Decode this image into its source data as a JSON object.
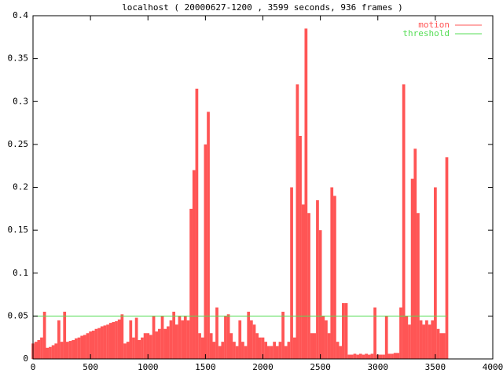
{
  "chart_data": {
    "type": "impulse",
    "title": "localhost ( 20000627-1200 , 3599 seconds, 936 frames )",
    "xlim": [
      0,
      4000
    ],
    "xticks": [
      0,
      500,
      1000,
      1500,
      2000,
      2500,
      3000,
      3500,
      4000
    ],
    "ylim": [
      0,
      0.4
    ],
    "yticks": [
      0,
      0.05,
      0.1,
      0.15,
      0.2,
      0.25,
      0.3,
      0.35,
      0.4
    ],
    "legend": "upper right",
    "series": [
      {
        "name": "motion",
        "color": "#ff5555",
        "style": "impulses",
        "x": [
          0,
          25,
          50,
          75,
          100,
          125,
          150,
          175,
          200,
          225,
          250,
          275,
          300,
          325,
          350,
          375,
          400,
          425,
          450,
          475,
          500,
          525,
          550,
          575,
          600,
          625,
          650,
          675,
          700,
          725,
          750,
          775,
          800,
          825,
          850,
          875,
          900,
          925,
          950,
          975,
          1000,
          1025,
          1050,
          1075,
          1100,
          1125,
          1150,
          1175,
          1200,
          1225,
          1250,
          1275,
          1300,
          1325,
          1350,
          1375,
          1400,
          1425,
          1450,
          1475,
          1500,
          1525,
          1550,
          1575,
          1600,
          1625,
          1650,
          1675,
          1700,
          1725,
          1750,
          1775,
          1800,
          1825,
          1850,
          1875,
          1900,
          1925,
          1950,
          1975,
          2000,
          2025,
          2050,
          2075,
          2100,
          2125,
          2150,
          2175,
          2200,
          2225,
          2250,
          2275,
          2300,
          2325,
          2350,
          2375,
          2400,
          2425,
          2450,
          2475,
          2500,
          2525,
          2550,
          2575,
          2600,
          2625,
          2650,
          2675,
          2700,
          2725,
          2750,
          2775,
          2800,
          2825,
          2850,
          2875,
          2900,
          2925,
          2950,
          2975,
          3000,
          3025,
          3050,
          3075,
          3100,
          3125,
          3150,
          3175,
          3200,
          3225,
          3250,
          3275,
          3300,
          3325,
          3350,
          3375,
          3400,
          3425,
          3450,
          3475,
          3500,
          3525,
          3550,
          3575,
          3600
        ],
        "values": [
          0.018,
          0.02,
          0.022,
          0.025,
          0.055,
          0.013,
          0.014,
          0.016,
          0.018,
          0.045,
          0.02,
          0.055,
          0.02,
          0.021,
          0.022,
          0.024,
          0.025,
          0.027,
          0.028,
          0.03,
          0.032,
          0.033,
          0.035,
          0.036,
          0.038,
          0.039,
          0.04,
          0.042,
          0.043,
          0.044,
          0.046,
          0.052,
          0.018,
          0.02,
          0.045,
          0.025,
          0.048,
          0.022,
          0.025,
          0.03,
          0.03,
          0.028,
          0.05,
          0.032,
          0.035,
          0.05,
          0.035,
          0.038,
          0.045,
          0.055,
          0.04,
          0.05,
          0.045,
          0.05,
          0.045,
          0.175,
          0.22,
          0.315,
          0.03,
          0.025,
          0.25,
          0.288,
          0.03,
          0.02,
          0.06,
          0.015,
          0.02,
          0.05,
          0.052,
          0.03,
          0.02,
          0.015,
          0.045,
          0.02,
          0.015,
          0.055,
          0.045,
          0.04,
          0.03,
          0.025,
          0.025,
          0.02,
          0.015,
          0.015,
          0.02,
          0.015,
          0.02,
          0.055,
          0.015,
          0.02,
          0.2,
          0.025,
          0.32,
          0.26,
          0.18,
          0.385,
          0.17,
          0.03,
          0.03,
          0.185,
          0.15,
          0.05,
          0.045,
          0.03,
          0.2,
          0.19,
          0.02,
          0.015,
          0.065,
          0.065,
          0.005,
          0.005,
          0.006,
          0.005,
          0.006,
          0.005,
          0.006,
          0.005,
          0.006,
          0.06,
          0.005,
          0.005,
          0.005,
          0.05,
          0.006,
          0.006,
          0.007,
          0.007,
          0.06,
          0.32,
          0.05,
          0.04,
          0.21,
          0.245,
          0.17,
          0.045,
          0.04,
          0.045,
          0.04,
          0.045,
          0.2,
          0.035,
          0.03,
          0.03,
          0.235
        ]
      },
      {
        "name": "threshold",
        "color": "#55dd55",
        "style": "lines",
        "x": [
          0,
          3600
        ],
        "values": [
          0.05,
          0.05
        ]
      }
    ]
  }
}
